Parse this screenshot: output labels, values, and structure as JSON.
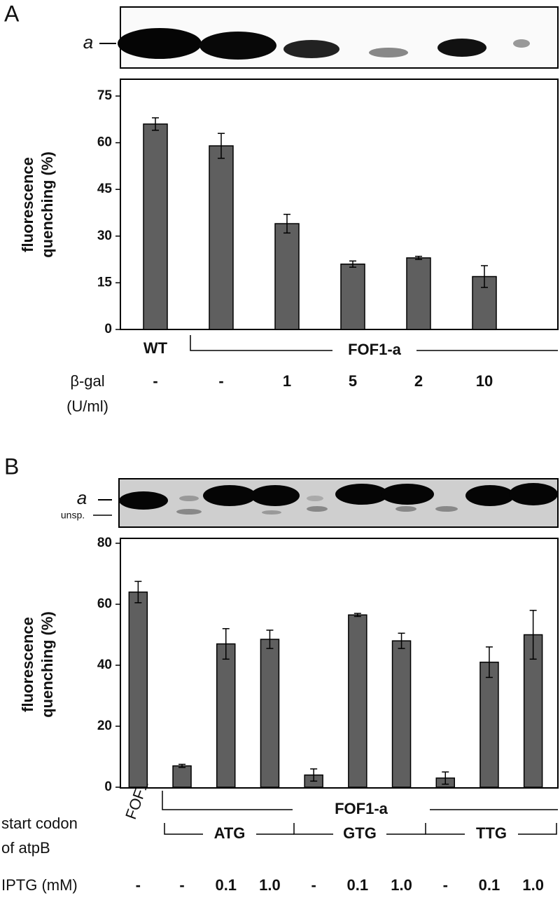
{
  "panel_labels": [
    "A",
    "B"
  ],
  "chart_data": [
    {
      "type": "bar",
      "panel": "A",
      "blot_labels": [
        "a"
      ],
      "y_label_lines": [
        "fluorescence",
        "quenching (%)"
      ],
      "categories": [
        "-",
        "-",
        "1",
        "5",
        "2",
        "10"
      ],
      "row_label": [
        "β-gal",
        "(U/ml)"
      ],
      "groups": [
        "WT",
        "FOF1-a"
      ],
      "values": [
        66,
        59,
        34,
        21,
        23,
        17
      ],
      "errors": [
        2,
        4,
        3,
        1,
        0.5,
        3.5
      ],
      "color": "#5f5f5f",
      "ylim": [
        0,
        75
      ],
      "yticks": [
        0,
        15,
        30,
        45,
        60,
        75
      ]
    },
    {
      "type": "bar",
      "panel": "B",
      "blot_labels": [
        "a",
        "unsp."
      ],
      "y_label_lines": [
        "fluorescence",
        "quenching (%)"
      ],
      "first_label": "FOF1",
      "group_label": "FOF1-a",
      "codon_label": [
        "start codon",
        "of atpB"
      ],
      "codons": [
        "ATG",
        "GTG",
        "TTG"
      ],
      "row_label": "IPTG (mM)",
      "categories": [
        "-",
        "-",
        "0.1",
        "1.0",
        "-",
        "0.1",
        "1.0",
        "-",
        "0.1",
        "1.0"
      ],
      "values": [
        64,
        7,
        47,
        48.5,
        4,
        56.5,
        48,
        3,
        41,
        50
      ],
      "errors": [
        3.5,
        0.5,
        5,
        3,
        2,
        0.5,
        2.5,
        2,
        5,
        8
      ],
      "color": "#5f5f5f",
      "ylim": [
        0,
        80
      ],
      "yticks": [
        0,
        20,
        40,
        60,
        80
      ]
    }
  ]
}
